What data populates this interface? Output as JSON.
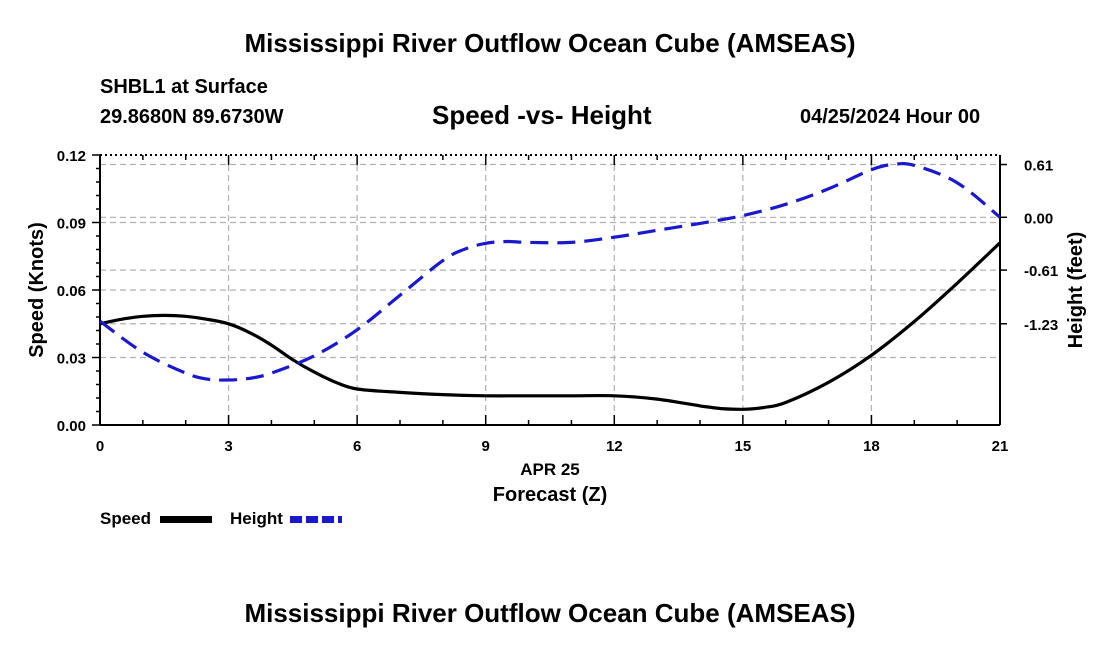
{
  "page": {
    "title_top": "Mississippi River Outflow Ocean Cube (AMSEAS)",
    "title_bottom": "Mississippi River Outflow Ocean Cube (AMSEAS)",
    "station": "SHBL1 at Surface",
    "coordinates": "29.8680N  89.6730W",
    "datetime": "04/25/2024 Hour 00"
  },
  "legend": {
    "speed_label": "Speed",
    "height_label": "Height"
  },
  "colors": {
    "speed": "#000000",
    "height": "#1a1acc",
    "grid": "#b0b0b0"
  },
  "chart_data": {
    "type": "line",
    "title": "Speed -vs- Height",
    "xlabel": "Forecast (Z)",
    "xdate_label": "APR 25",
    "ylabel": "Speed (Knots)",
    "y2label": "Height (feet)",
    "xlim": [
      0,
      21
    ],
    "ylim": [
      0,
      0.12
    ],
    "y2lim": [
      -2.4,
      0.72
    ],
    "x_ticks": [
      0,
      3,
      6,
      9,
      12,
      15,
      18,
      21
    ],
    "x_tick_labels": [
      "0",
      "3",
      "6",
      "9",
      "12",
      "15",
      "18",
      "21"
    ],
    "y_ticks": [
      0,
      0.03,
      0.06,
      0.09,
      0.12
    ],
    "y_tick_labels": [
      "0.00",
      "0.03",
      "0.06",
      "0.09",
      "0.12"
    ],
    "y2_ticks": [
      0.61,
      0,
      -0.61,
      -1.23
    ],
    "y2_tick_labels": [
      "0.61",
      "0.00",
      "-0.61",
      "-1.23"
    ],
    "grid": true,
    "series": [
      {
        "name": "Speed",
        "axis": "left",
        "style": "solid",
        "x": [
          0,
          0.5,
          1,
          1.5,
          2,
          2.5,
          3,
          3.5,
          4,
          4.5,
          5,
          5.5,
          6,
          7,
          8,
          9,
          10,
          11,
          12,
          13,
          14,
          14.5,
          15,
          15.5,
          16,
          17,
          18,
          19,
          20,
          21
        ],
        "values": [
          0.045,
          0.047,
          0.0483,
          0.0487,
          0.0483,
          0.047,
          0.045,
          0.041,
          0.0355,
          0.029,
          0.0235,
          0.019,
          0.016,
          0.0145,
          0.0135,
          0.013,
          0.013,
          0.013,
          0.013,
          0.0115,
          0.0085,
          0.0073,
          0.007,
          0.0078,
          0.01,
          0.019,
          0.031,
          0.046,
          0.063,
          0.081
        ]
      },
      {
        "name": "Height",
        "axis": "right",
        "style": "dashed",
        "x": [
          0,
          1,
          2,
          2.5,
          3,
          3.5,
          4,
          5,
          6,
          7,
          8,
          8.5,
          9,
          9.5,
          10,
          11,
          12,
          13,
          14,
          15,
          16,
          17,
          18,
          18.5,
          19,
          20,
          21
        ],
        "values": [
          -1.2,
          -1.56,
          -1.8,
          -1.87,
          -1.88,
          -1.86,
          -1.8,
          -1.6,
          -1.3,
          -0.9,
          -0.5,
          -0.37,
          -0.3,
          -0.28,
          -0.29,
          -0.29,
          -0.23,
          -0.15,
          -0.07,
          0.02,
          0.15,
          0.33,
          0.55,
          0.61,
          0.6,
          0.4,
          0.0
        ]
      }
    ]
  }
}
